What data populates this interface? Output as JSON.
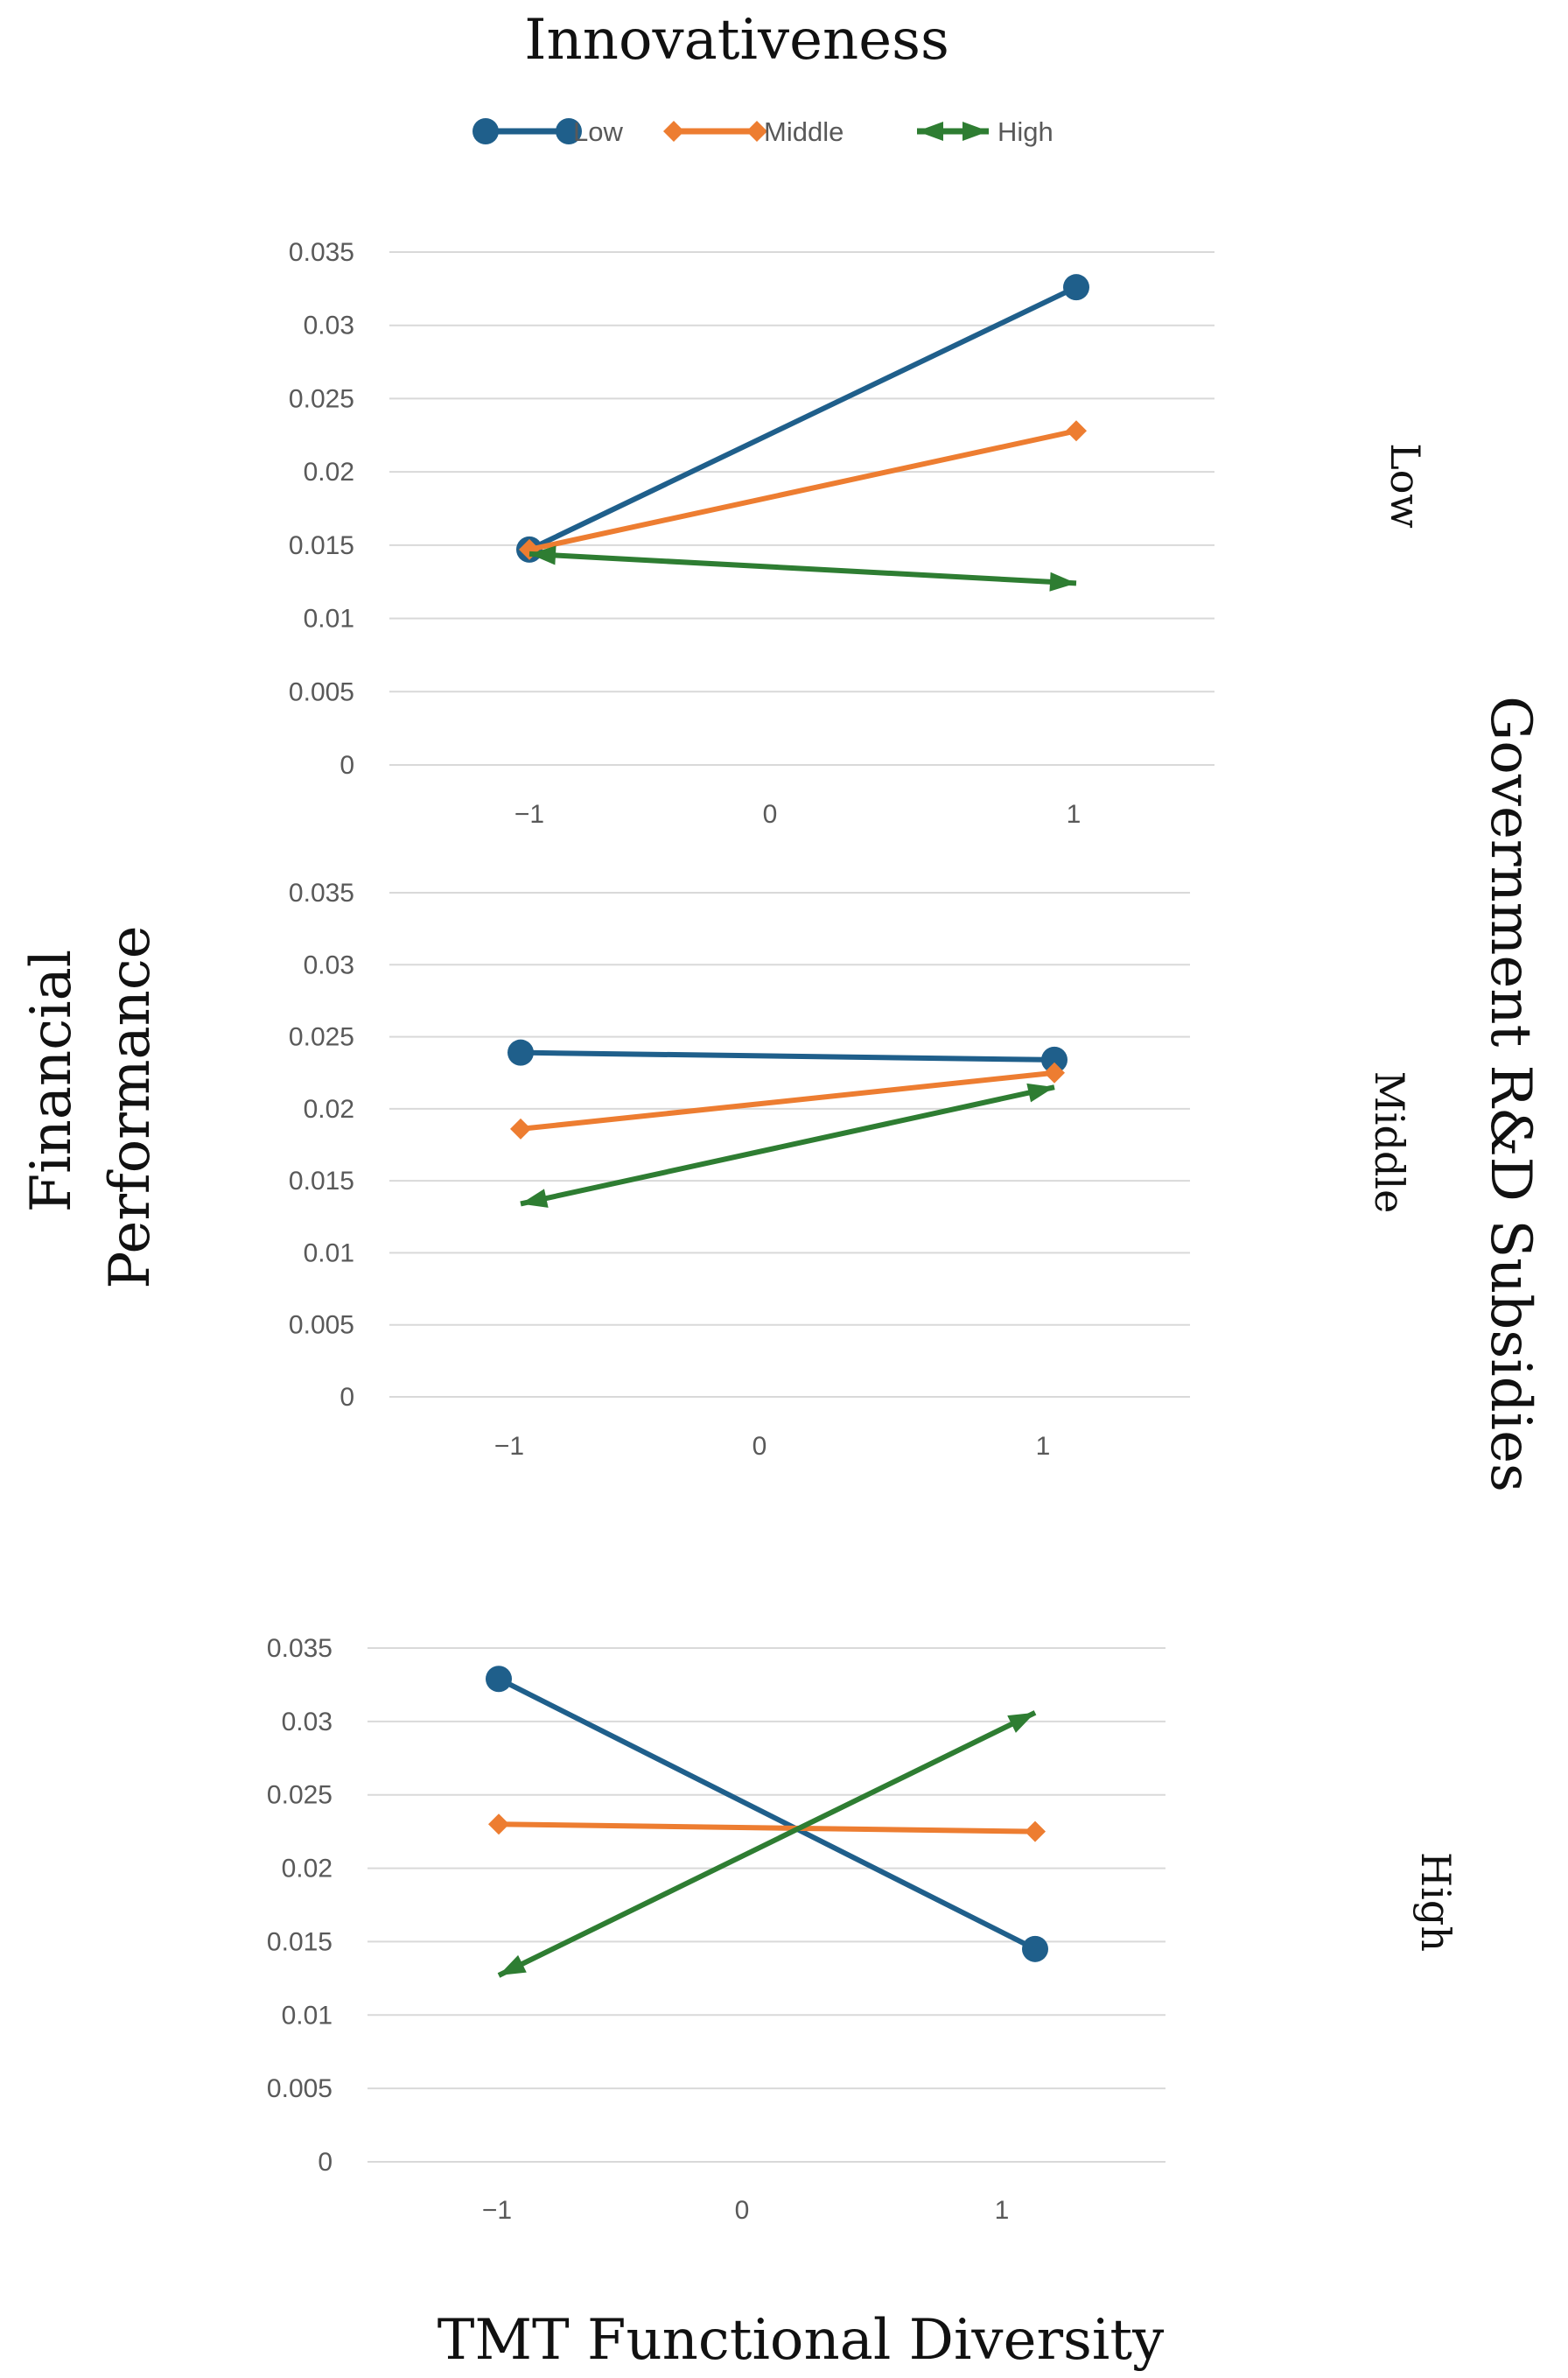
{
  "figure": {
    "title": "Innovativeness",
    "ylabel_line1": "Financial",
    "ylabel_line2": "Performance",
    "xlabel": "TMT Functional Diversity",
    "right_label": "Government R&D Subsidies"
  },
  "legend": [
    {
      "name": "Low",
      "color": "#1f5f8b",
      "marker": "circle"
    },
    {
      "name": "Middle",
      "color": "#ed7d31",
      "marker": "diamond"
    },
    {
      "name": "High",
      "color": "#2e7d32",
      "marker": "arrow"
    }
  ],
  "chart_data": [
    {
      "type": "line",
      "panel_label": "Low",
      "categories": [
        "−1",
        "0",
        "1"
      ],
      "x": [
        -1,
        1
      ],
      "ylim": [
        0,
        0.035
      ],
      "yticks": [
        "0",
        "0.005",
        "0.01",
        "0.015",
        "0.02",
        "0.025",
        "0.03",
        "0.035"
      ],
      "grid": true,
      "series": [
        {
          "name": "Low",
          "values": [
            0.0147,
            0.0326
          ]
        },
        {
          "name": "Middle",
          "values": [
            0.0147,
            0.0228
          ]
        },
        {
          "name": "High",
          "values": [
            0.0144,
            0.0124
          ]
        }
      ]
    },
    {
      "type": "line",
      "panel_label": "Middle",
      "categories": [
        "−1",
        "0",
        "1"
      ],
      "x": [
        -1,
        1
      ],
      "ylim": [
        0,
        0.035
      ],
      "yticks": [
        "0",
        "0.005",
        "0.01",
        "0.015",
        "0.02",
        "0.025",
        "0.03",
        "0.035"
      ],
      "grid": true,
      "series": [
        {
          "name": "Low",
          "values": [
            0.0239,
            0.0234
          ]
        },
        {
          "name": "Middle",
          "values": [
            0.0186,
            0.0225
          ]
        },
        {
          "name": "High",
          "values": [
            0.0134,
            0.0215
          ]
        }
      ]
    },
    {
      "type": "line",
      "panel_label": "High",
      "categories": [
        "−1",
        "0",
        "1"
      ],
      "x": [
        -1,
        1
      ],
      "ylim": [
        0,
        0.035
      ],
      "yticks": [
        "0",
        "0.005",
        "0.01",
        "0.015",
        "0.02",
        "0.025",
        "0.03",
        "0.035"
      ],
      "grid": true,
      "series": [
        {
          "name": "Low",
          "values": [
            0.0329,
            0.0145
          ]
        },
        {
          "name": "Middle",
          "values": [
            0.023,
            0.0225
          ]
        },
        {
          "name": "High",
          "values": [
            0.0127,
            0.0306
          ]
        }
      ]
    }
  ]
}
